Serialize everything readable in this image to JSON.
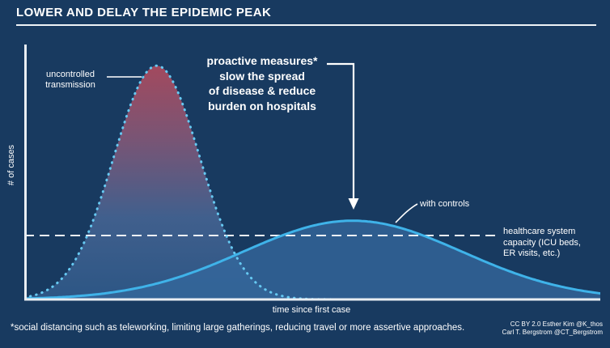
{
  "title": "LOWER AND DELAY THE EPIDEMIC PEAK",
  "axes": {
    "x_label": "time since first case",
    "y_label": "# of cases"
  },
  "curve_labels": {
    "uncontrolled": [
      "uncontrolled",
      "transmission"
    ],
    "with_controls": "with controls"
  },
  "annotation": {
    "lines": [
      "proactive measures*",
      "slow the spread",
      "of disease & reduce",
      "burden on hospitals"
    ]
  },
  "capacity": {
    "lines": [
      "healthcare system",
      "capacity (ICU beds,",
      "ER visits, etc.)"
    ]
  },
  "footnote": "*social distancing such as teleworking, limiting large gatherings, reducing travel or more assertive approaches.",
  "credits": [
    "CC BY 2.0  Esther Kim  @K_thos",
    "Carl T. Bergstrom  @CT_Bergstrom"
  ],
  "colors": {
    "background": "#183a60",
    "axis": "#e9eef3",
    "dashed_line": "#eef2f6",
    "uncontrolled_stroke": "#66c9f2",
    "controlled_stroke": "#3fb3e9",
    "uncontrolled_gradient": [
      "#a84a5e",
      "#7c5676",
      "#42618f",
      "#2d5786"
    ],
    "controlled_fill": "#35689c",
    "text": "#ffffff"
  },
  "chart_data": {
    "type": "area",
    "title": "LOWER AND DELAY THE EPIDEMIC PEAK",
    "xlabel": "time since first case",
    "ylabel": "# of cases",
    "x_axis": {
      "min": 0,
      "max": 1,
      "tick_labels": "none"
    },
    "y_axis": {
      "min": 0,
      "max": 1,
      "tick_labels": "none"
    },
    "grid": false,
    "legend": "inline-annotations",
    "series": [
      {
        "name": "uncontrolled transmission",
        "shape": "gaussian",
        "peak_x": 0.23,
        "peak_height": 0.95,
        "sigma": 0.075,
        "stroke_style": "dotted",
        "fill": "red-to-blue gradient"
      },
      {
        "name": "with controls",
        "shape": "gaussian",
        "peak_x": 0.57,
        "peak_height": 0.32,
        "sigma": 0.19,
        "stroke_style": "solid",
        "fill": "translucent blue"
      }
    ],
    "reference_line": {
      "label": "healthcare system capacity (ICU beds, ER visits, etc.)",
      "y": 0.26,
      "x_extent": 0.825,
      "style": "dashed"
    }
  }
}
